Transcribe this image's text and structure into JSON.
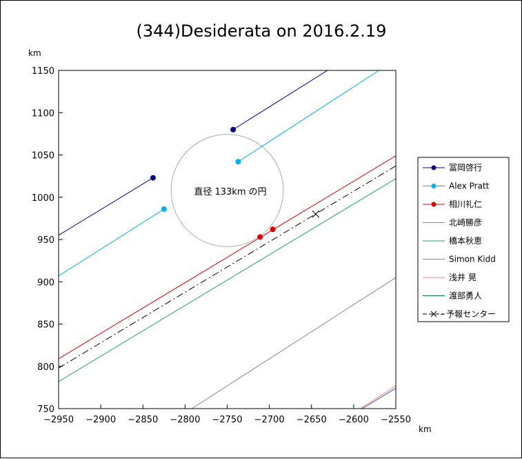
{
  "chart_data": {
    "type": "line",
    "title": "(344)Desiderata on 2016.2.19",
    "xlabel": "km",
    "ylabel": "km",
    "xlim": [
      -2950,
      -2550
    ],
    "ylim": [
      750,
      1150
    ],
    "xticks": [
      -2950,
      -2900,
      -2850,
      -2800,
      -2750,
      -2700,
      -2650,
      -2600,
      -2550
    ],
    "xtick_labels": [
      "−2950",
      "−2900",
      "−2850",
      "−2800",
      "−2750",
      "−2700",
      "−2650",
      "−2600",
      "−2550"
    ],
    "yticks": [
      750,
      800,
      850,
      900,
      950,
      1000,
      1050,
      1100,
      1150
    ],
    "ytick_labels": [
      "750",
      "800",
      "850",
      "900",
      "950",
      "1000",
      "1050",
      "1100",
      "1150"
    ],
    "circle": {
      "center": [
        -2750,
        1008
      ],
      "diameter": 133,
      "label": "直径 133km の円",
      "color": "#aaaaaa"
    },
    "series": [
      {
        "name": "冨岡啓行",
        "color": "#000080",
        "marker": "dot",
        "segments": [
          {
            "start": [
              -2838,
              1023
            ],
            "end": [
              -2950,
              955
            ]
          },
          {
            "start": [
              -2743,
              1080
            ],
            "end": [
              -2631,
              1150
            ]
          }
        ],
        "points": [
          [
            -2838,
            1023
          ],
          [
            -2743,
            1080
          ]
        ]
      },
      {
        "name": "Alex Pratt",
        "color": "#00b0f0",
        "marker": "dot",
        "segments": [
          {
            "start": [
              -2825,
              986
            ],
            "end": [
              -2950,
              907
            ]
          },
          {
            "start": [
              -2737,
              1042
            ],
            "end": [
              -2570,
              1150
            ]
          }
        ],
        "points": [
          [
            -2825,
            986
          ],
          [
            -2737,
            1042
          ]
        ]
      },
      {
        "name": "相川礼仁",
        "color": "#dd0000",
        "marker": "dot",
        "segments": [
          {
            "start": [
              -2950,
              809
            ],
            "end": [
              -2550,
              1049
            ]
          }
        ],
        "points": [
          [
            -2711,
            953
          ],
          [
            -2696,
            962
          ]
        ]
      },
      {
        "name": "北崎勝彦",
        "color": "#888888",
        "marker": "none",
        "segments": [
          {
            "start": [
              -2792,
              750
            ],
            "end": [
              -2550,
              905
            ]
          }
        ]
      },
      {
        "name": "橋本秋恵",
        "color": "#2e9a7a",
        "marker": "none",
        "segments": [
          {
            "start": [
              -2950,
              782
            ],
            "end": [
              -2550,
              1022
            ]
          }
        ]
      },
      {
        "name": "Simon Kidd",
        "color": "#888888",
        "marker": "none",
        "segments": []
      },
      {
        "name": "浅井 晃",
        "color": "#ff8080",
        "marker": "none",
        "segments": [
          {
            "start": [
              -2592,
              750
            ],
            "end": [
              -2550,
              777
            ]
          }
        ]
      },
      {
        "name": "渡部勇人",
        "color": "#00695c",
        "marker": "none",
        "segments": []
      },
      {
        "name": "予報センター",
        "color": "#000000",
        "marker": "cross",
        "dashed": true,
        "segments": [
          {
            "start": [
              -2950,
              798
            ],
            "end": [
              -2550,
              1037
            ]
          }
        ],
        "points": [
          [
            -2645,
            980
          ]
        ]
      },
      {
        "name": "",
        "color": "#3050d0",
        "marker": "none",
        "segments": [
          {
            "start": [
              -2590,
              750
            ],
            "end": [
              -2550,
              774
            ]
          }
        ]
      }
    ]
  }
}
